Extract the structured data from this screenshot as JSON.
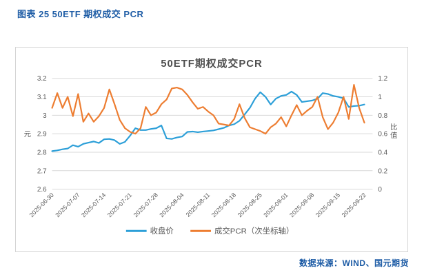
{
  "page": {
    "header": "图表 25  50ETF 期权成交 PCR",
    "source": "数据来源：WIND、国元期货"
  },
  "chart_data": {
    "type": "line",
    "title": "50ETF期权成交PCR",
    "grid": "horizontal",
    "legend_position": "bottom",
    "y_left": {
      "label": "元",
      "min": 2.6,
      "max": 3.2,
      "ticks": [
        "3.2",
        "3.1",
        "3",
        "2.9",
        "2.8",
        "2.7",
        "2.6"
      ]
    },
    "y_right": {
      "label": "比值",
      "min": 0,
      "max": 1.2,
      "ticks": [
        "1.2",
        "1",
        "0.8",
        "0.6",
        "0.4",
        "0.2",
        "0"
      ]
    },
    "x_tick_labels": [
      "2025-06-30",
      "2025-07-07",
      "2025-07-14",
      "2025-07-21",
      "2025-07-28",
      "2025-08-04",
      "2025-08-11",
      "2025-08-18",
      "2025-08-25",
      "2025-09-01",
      "2025-09-08",
      "2025-09-15",
      "2025-09-22"
    ],
    "x_tick_every": 5,
    "series": [
      {
        "name": "收盘价",
        "axis": "left",
        "color": "#2c9fd8",
        "values": [
          2.806,
          2.81,
          2.816,
          2.82,
          2.838,
          2.83,
          2.845,
          2.852,
          2.858,
          2.85,
          2.87,
          2.872,
          2.865,
          2.845,
          2.856,
          2.89,
          2.93,
          2.92,
          2.92,
          2.926,
          2.93,
          2.945,
          2.875,
          2.872,
          2.88,
          2.885,
          2.91,
          2.912,
          2.908,
          2.912,
          2.915,
          2.918,
          2.925,
          2.932,
          2.945,
          2.952,
          2.97,
          3.005,
          3.04,
          3.09,
          3.125,
          3.1,
          3.058,
          3.09,
          3.105,
          3.11,
          3.128,
          3.11,
          3.072,
          3.076,
          3.08,
          3.09,
          3.12,
          3.115,
          3.105,
          3.1,
          3.092,
          3.045,
          3.05,
          3.052,
          3.058
        ]
      },
      {
        "name": "成交PCR（次坐标轴）",
        "axis": "right",
        "color": "#ed7d31",
        "values": [
          0.88,
          1.04,
          0.88,
          1.0,
          0.79,
          1.03,
          0.73,
          0.82,
          0.73,
          0.79,
          0.88,
          1.08,
          0.92,
          0.75,
          0.66,
          0.62,
          0.6,
          0.66,
          0.89,
          0.8,
          0.83,
          0.92,
          0.97,
          1.09,
          1.1,
          1.08,
          1.02,
          0.94,
          0.87,
          0.89,
          0.84,
          0.8,
          0.71,
          0.7,
          0.69,
          0.76,
          0.92,
          0.77,
          0.67,
          0.65,
          0.63,
          0.6,
          0.67,
          0.71,
          0.78,
          0.68,
          0.8,
          0.91,
          0.8,
          0.85,
          0.89,
          1.0,
          0.78,
          0.65,
          0.72,
          0.83,
          1.0,
          0.76,
          1.13,
          0.88,
          0.72
        ]
      }
    ]
  }
}
